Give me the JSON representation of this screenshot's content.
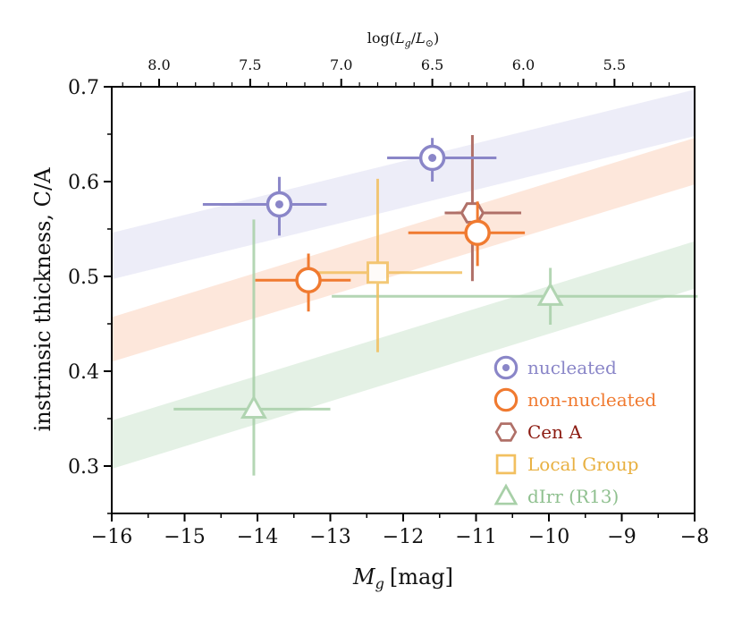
{
  "chart_data": {
    "type": "scatter",
    "title": "",
    "xlabel": "M_g [mag]",
    "xlabel_parts": {
      "main": "M",
      "sub": "g",
      "unit": "[mag]"
    },
    "ylabel": "instrinsic thickness, C/A",
    "top_xlabel": "log(L_g/L_⊙)",
    "top_xlabel_parts": {
      "prefix": "log(",
      "l1": "L",
      "s1": "g",
      "slash": "/",
      "l2": "L",
      "s2": "⊙",
      "suffix": ")"
    },
    "xlim": [
      -16,
      -8
    ],
    "ylim": [
      0.25,
      0.7
    ],
    "x_ticks": [
      -16,
      -15,
      -14,
      -13,
      -12,
      -11,
      -10,
      -9,
      -8
    ],
    "x_tick_labels": [
      "−16",
      "−15",
      "−14",
      "−13",
      "−12",
      "−11",
      "−10",
      "−9",
      "−8"
    ],
    "y_ticks": [
      0.3,
      0.4,
      0.5,
      0.6,
      0.7
    ],
    "y_tick_labels": [
      "0.3",
      "0.4",
      "0.5",
      "0.6",
      "0.7"
    ],
    "top_ticks_logL": [
      8.0,
      7.5,
      7.0,
      6.5,
      6.0,
      5.5
    ],
    "top_tick_labels": [
      "8.0",
      "7.5",
      "7.0",
      "6.5",
      "6.0",
      "5.5"
    ],
    "top_axis_relation": "log(L) = -0.4 * (M_g - 4.65)",
    "bands": [
      {
        "name": "nucleated-band",
        "color": "#8c8cd4",
        "opacity": 0.16,
        "x": [
          -16,
          -8
        ],
        "lower": [
          0.497,
          0.648
        ],
        "upper": [
          0.546,
          0.697
        ]
      },
      {
        "name": "non-nucleated-band",
        "color": "#f6894a",
        "opacity": 0.2,
        "x": [
          -16,
          -8
        ],
        "lower": [
          0.41,
          0.597
        ],
        "upper": [
          0.457,
          0.646
        ]
      },
      {
        "name": "dirr-band",
        "color": "#86c08a",
        "opacity": 0.22,
        "x": [
          -16,
          -8
        ],
        "lower": [
          0.297,
          0.487
        ],
        "upper": [
          0.348,
          0.537
        ]
      }
    ],
    "series": [
      {
        "name": "nucleated",
        "marker": "circle-dot",
        "color": "#8a86c8",
        "opacity": 1.0,
        "points": [
          {
            "x": -13.7,
            "y": 0.576,
            "xerr": [
              1.05,
              0.65
            ],
            "yerr": [
              0.033,
              0.029
            ]
          },
          {
            "x": -11.6,
            "y": 0.625,
            "xerr": [
              0.62,
              0.88
            ],
            "yerr": [
              0.025,
              0.021
            ]
          }
        ]
      },
      {
        "name": "non-nucleated",
        "marker": "circle",
        "color": "#f07a30",
        "opacity": 1.0,
        "points": [
          {
            "x": -13.3,
            "y": 0.496,
            "xerr": [
              0.73,
              0.58
            ],
            "yerr": [
              0.033,
              0.028
            ]
          },
          {
            "x": -10.98,
            "y": 0.546,
            "xerr": [
              0.95,
              0.65
            ],
            "yerr": [
              0.035,
              0.033
            ]
          }
        ]
      },
      {
        "name": "Cen A",
        "marker": "hexagon",
        "color": "#b07068",
        "opacity": 1.0,
        "points": [
          {
            "x": -11.05,
            "y": 0.567,
            "xerr": [
              0.38,
              0.67
            ],
            "yerr": [
              0.072,
              0.082
            ]
          }
        ]
      },
      {
        "name": "Local Group",
        "marker": "square",
        "color": "#f2c060",
        "opacity": 0.85,
        "points": [
          {
            "x": -12.35,
            "y": 0.504,
            "xerr": [
              0.87,
              1.16
            ],
            "yerr": [
              0.084,
              0.099
            ]
          }
        ]
      },
      {
        "name": "dIrr (R13)",
        "marker": "triangle",
        "color": "#a8d0a8",
        "opacity": 0.85,
        "points": [
          {
            "x": -14.05,
            "y": 0.36,
            "xerr": [
              1.1,
              1.05
            ],
            "yerr": [
              0.07,
              0.2
            ]
          },
          {
            "x": -9.98,
            "y": 0.479,
            "xerr": [
              3.0,
              2.02
            ],
            "yerr": [
              0.03,
              0.03
            ]
          }
        ]
      }
    ],
    "legend": {
      "location": "lower-right",
      "entries": [
        {
          "label": "nucleated",
          "marker": "circle-dot",
          "color": "#8a86c8",
          "text_color": "#8a86c8"
        },
        {
          "label": "non-nucleated",
          "marker": "circle",
          "color": "#f07a30",
          "text_color": "#f07a30"
        },
        {
          "label": "Cen A",
          "marker": "hexagon",
          "color": "#b07068",
          "text_color": "#8b1a10"
        },
        {
          "label": "Local Group",
          "marker": "square",
          "color": "#f2c060",
          "text_color": "#e8b040"
        },
        {
          "label": "dIrr (R13)",
          "marker": "triangle",
          "color": "#a8d0a8",
          "text_color": "#8fc08f"
        }
      ]
    }
  }
}
